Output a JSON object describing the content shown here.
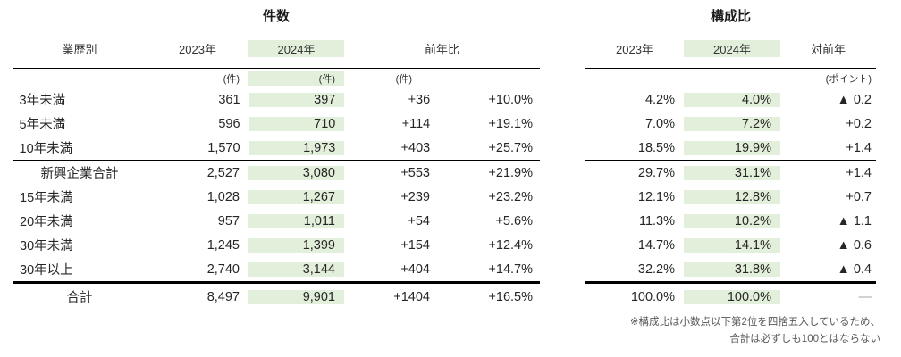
{
  "chart_data": {
    "type": "table",
    "highlight_column": "2024年",
    "highlight_color": "#e2efda",
    "tables": [
      {
        "title": "件数",
        "columns": [
          "業歴別",
          "2023年",
          "2024年",
          "前年比"
        ],
        "units": [
          "(件)",
          "(件)",
          "(件)"
        ],
        "rows": [
          [
            "3年未満",
            "361",
            "397",
            "+36",
            "+10.0%"
          ],
          [
            "5年未満",
            "596",
            "710",
            "+114",
            "+19.1%"
          ],
          [
            "10年未満",
            "1,570",
            "1,973",
            "+403",
            "+25.7%"
          ],
          [
            "新興企業合計",
            "2,527",
            "3,080",
            "+553",
            "+21.9%"
          ],
          [
            "15年未満",
            "1,028",
            "1,267",
            "+239",
            "+23.2%"
          ],
          [
            "20年未満",
            "957",
            "1,011",
            "+54",
            "+5.6%"
          ],
          [
            "30年未満",
            "1,245",
            "1,399",
            "+154",
            "+12.4%"
          ],
          [
            "30年以上",
            "2,740",
            "3,144",
            "+404",
            "+14.7%"
          ],
          [
            "合計",
            "8,497",
            "9,901",
            "+1404",
            "+16.5%"
          ]
        ]
      },
      {
        "title": "構成比",
        "columns": [
          "2023年",
          "2024年",
          "対前年"
        ],
        "units": [
          "(ポイント)"
        ],
        "rows": [
          [
            "4.2%",
            "4.0%",
            "▲ 0.2"
          ],
          [
            "7.0%",
            "7.2%",
            "+0.2"
          ],
          [
            "18.5%",
            "19.9%",
            "+1.4"
          ],
          [
            "29.7%",
            "31.1%",
            "+1.4"
          ],
          [
            "12.1%",
            "12.8%",
            "+0.7"
          ],
          [
            "11.3%",
            "10.2%",
            "▲ 1.1"
          ],
          [
            "14.7%",
            "14.1%",
            "▲ 0.6"
          ],
          [
            "32.2%",
            "31.8%",
            "▲ 0.4"
          ],
          [
            "100.0%",
            "100.0%",
            "—"
          ]
        ]
      }
    ],
    "note": [
      "※構成比は小数点以下第2位を四捨五入しているため、",
      "合計は必ずしも100とはならない"
    ]
  }
}
